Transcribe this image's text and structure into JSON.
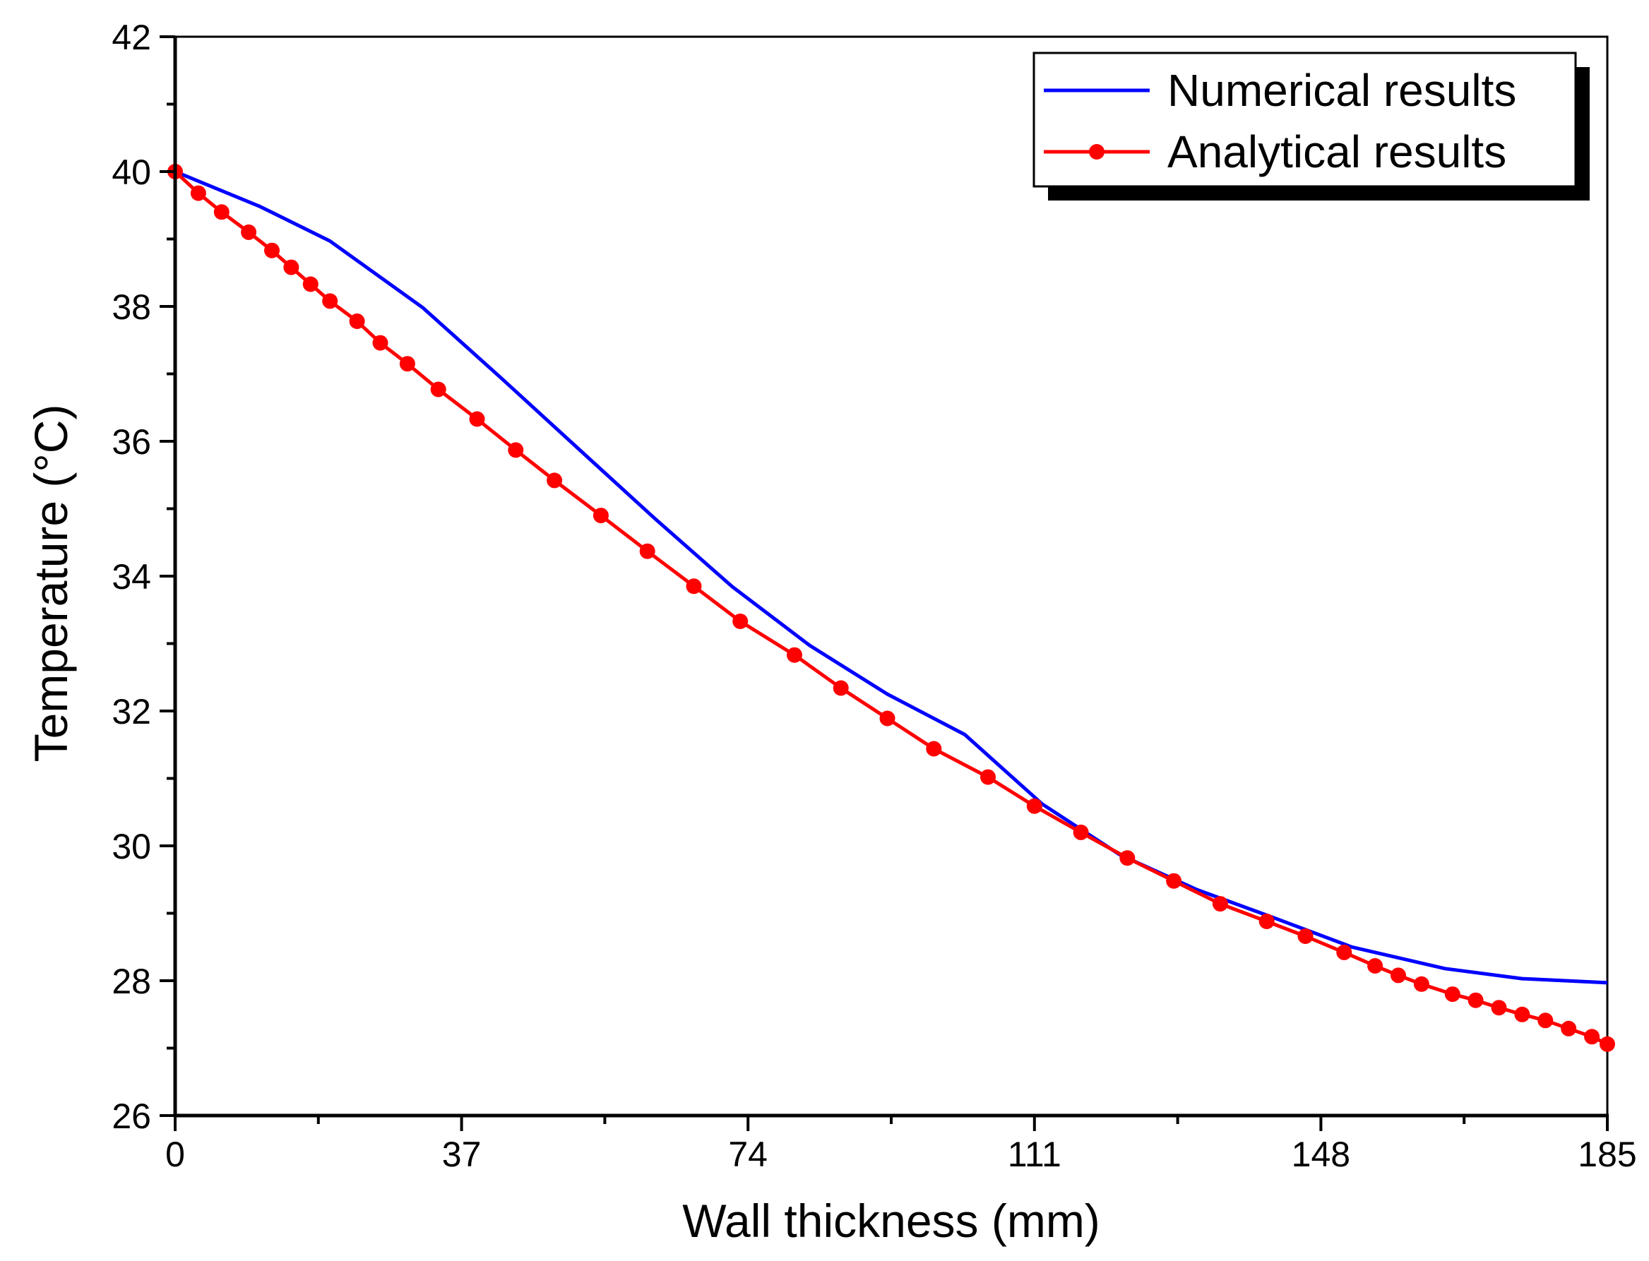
{
  "chart_data": {
    "type": "line",
    "title": "",
    "xlabel": "Wall thickness (mm)",
    "ylabel": "Temperature (°C)",
    "xlim": [
      0,
      185
    ],
    "ylim": [
      26,
      42
    ],
    "xticks": [
      0,
      37,
      74,
      111,
      148,
      185
    ],
    "xtick_labels": [
      "0",
      "37",
      "74",
      "111",
      "148",
      "185"
    ],
    "yticks": [
      26,
      28,
      30,
      32,
      34,
      36,
      38,
      40,
      42
    ],
    "ytick_labels": [
      "26",
      "28",
      "30",
      "32",
      "34",
      "36",
      "38",
      "40",
      "42"
    ],
    "grid": false,
    "legend_position": "top-right",
    "series": [
      {
        "name": "Numerical results",
        "color": "#0000ff",
        "marker": "none",
        "x": [
          0,
          11,
          20,
          32,
          42,
          52,
          62,
          72,
          82,
          92,
          102,
          112,
          122,
          132,
          142,
          152,
          164,
          174,
          185
        ],
        "y": [
          40,
          39.48,
          38.97,
          37.98,
          36.95,
          35.9,
          34.85,
          33.84,
          32.97,
          32.25,
          31.65,
          30.62,
          29.87,
          29.35,
          28.93,
          28.5,
          28.18,
          28.03,
          27.97
        ]
      },
      {
        "name": "Analytical results",
        "color": "#ff0000",
        "marker": "circle",
        "x": [
          0,
          3,
          6,
          9.5,
          12.5,
          15,
          17.5,
          20,
          23.5,
          26.5,
          30,
          34,
          39,
          44,
          49,
          55,
          61,
          67,
          73,
          80,
          86,
          92,
          98,
          105,
          111,
          117,
          123,
          129,
          135,
          141,
          146,
          151,
          155,
          158,
          161,
          165,
          168,
          171,
          174,
          177,
          180,
          183,
          185
        ],
        "y": [
          40,
          39.68,
          39.4,
          39.1,
          38.83,
          38.58,
          38.33,
          38.08,
          37.78,
          37.46,
          37.15,
          36.77,
          36.33,
          35.87,
          35.42,
          34.9,
          34.37,
          33.85,
          33.33,
          32.83,
          32.34,
          31.89,
          31.44,
          31.02,
          30.59,
          30.2,
          29.82,
          29.48,
          29.14,
          28.88,
          28.66,
          28.42,
          28.22,
          28.08,
          27.95,
          27.8,
          27.71,
          27.6,
          27.5,
          27.41,
          27.29,
          27.17,
          27.06
        ]
      }
    ]
  }
}
